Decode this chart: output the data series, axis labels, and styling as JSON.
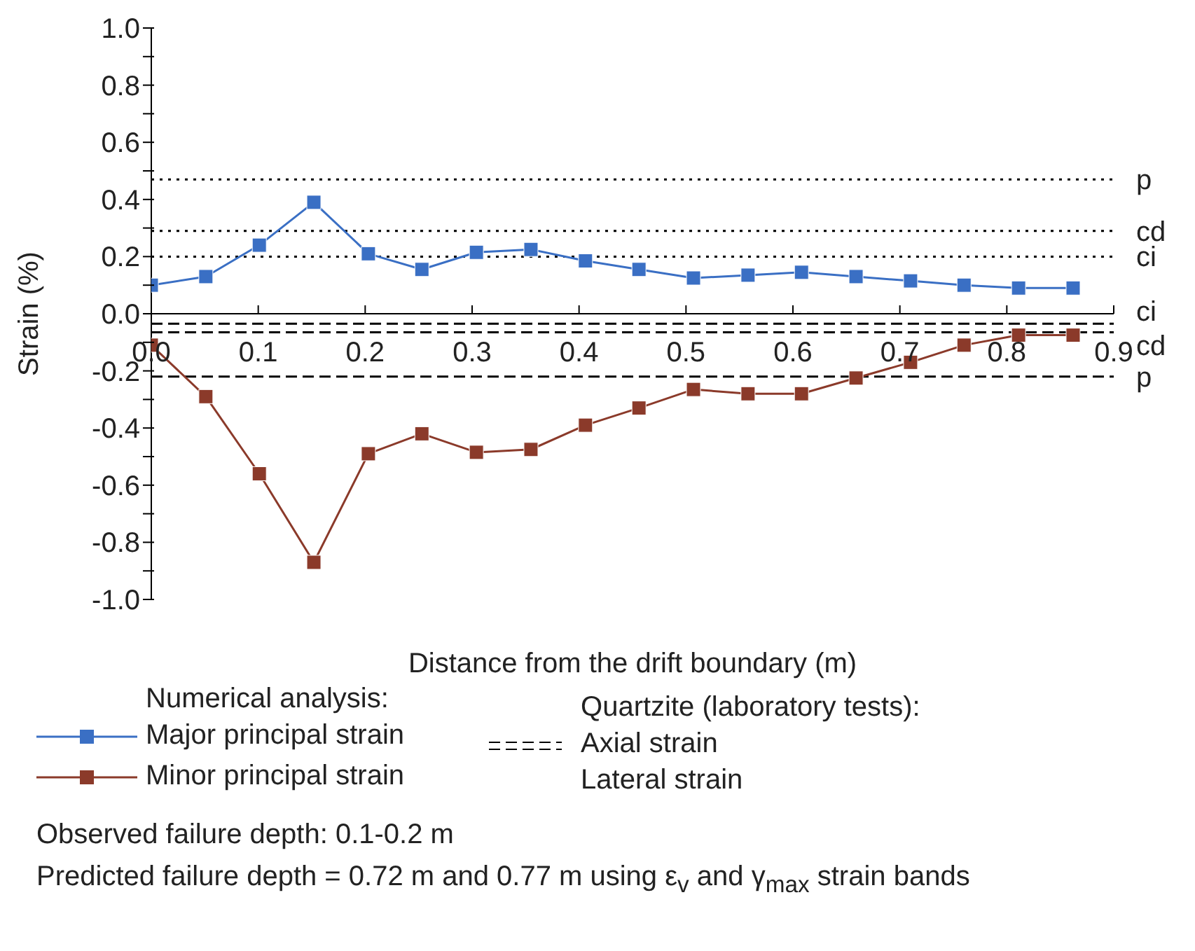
{
  "chart_data": {
    "type": "line",
    "xlabel": "Distance from the drift boundary (m)",
    "ylabel": "Strain (%)",
    "legend_title": "Numerical analysis:",
    "x": [
      0,
      0.051,
      0.101,
      0.152,
      0.203,
      0.253,
      0.304,
      0.355,
      0.406,
      0.456,
      0.507,
      0.558,
      0.608,
      0.659,
      0.71,
      0.76,
      0.811,
      0.862
    ],
    "series": [
      {
        "name": "Major principal strain",
        "color": "#3a6fc4",
        "values": [
          0.1,
          0.13,
          0.24,
          0.39,
          0.21,
          0.155,
          0.215,
          0.225,
          0.185,
          0.155,
          0.125,
          0.135,
          0.145,
          0.13,
          0.115,
          0.1,
          0.09,
          0.09
        ]
      },
      {
        "name": "Minor principal strain",
        "color": "#8b3a2a",
        "values": [
          -0.11,
          -0.29,
          -0.56,
          -0.87,
          -0.49,
          -0.42,
          -0.485,
          -0.475,
          -0.39,
          -0.33,
          -0.265,
          -0.28,
          -0.28,
          -0.225,
          -0.17,
          -0.11,
          -0.075,
          -0.075
        ]
      }
    ],
    "xlim": [
      0,
      0.9
    ],
    "xticks": [
      {
        "value": 0,
        "label": "0.0"
      },
      0.1,
      0.2,
      0.3,
      0.4,
      0.5,
      0.6,
      0.7,
      0.8,
      0.9
    ],
    "ylim": [
      -1,
      1
    ],
    "yticks": [
      {
        "value": -1,
        "label": "-1.0"
      },
      {
        "value": -0.9,
        "label": null
      },
      -0.8,
      {
        "value": -0.7,
        "label": null
      },
      -0.6,
      {
        "value": -0.5,
        "label": null
      },
      -0.4,
      {
        "value": -0.3,
        "label": null
      },
      -0.2,
      {
        "value": -0.1,
        "label": null
      },
      {
        "value": 0,
        "label": "0.0"
      },
      {
        "value": 0.1,
        "label": null
      },
      0.2,
      {
        "value": 0.3,
        "label": null
      },
      0.4,
      {
        "value": 0.5,
        "label": null
      },
      0.6,
      {
        "value": 0.7,
        "label": null
      },
      0.8,
      {
        "value": 0.9,
        "label": null
      },
      {
        "value": 1,
        "label": "1.0"
      }
    ],
    "ref_lines": [
      {
        "axis": "y",
        "value": 0.47,
        "label": "p",
        "color": "#000000",
        "line_style": "dotted"
      },
      {
        "axis": "y",
        "value": 0.29,
        "label": "cd",
        "color": "#000000",
        "line_style": "dotted"
      },
      {
        "axis": "y",
        "value": 0.2,
        "label": "ci",
        "color": "#000000",
        "line_style": "dotted"
      },
      {
        "axis": "y",
        "value": -0.035,
        "label": "ci",
        "color": "#000000",
        "line_style": "dashed"
      },
      {
        "axis": "y",
        "value": -0.065,
        "label": "cd",
        "color": "#000000",
        "line_style": "dashed"
      },
      {
        "axis": "y",
        "value": -0.22,
        "label": "p",
        "color": "#000000",
        "line_style": "dashed"
      }
    ],
    "annotations": [
      "Quartzite (laboratory tests):",
      "Axial strain",
      "Lateral strain",
      "Observed failure depth: 0.1-0.2 m",
      "Predicted failure depth = 0.72 m and 0.77 m using ε$_{v}$ and γ$_{max}$ strain bands"
    ],
    "marker": "square",
    "line_style": "solid",
    "grid": false,
    "legend": "bottom"
  }
}
